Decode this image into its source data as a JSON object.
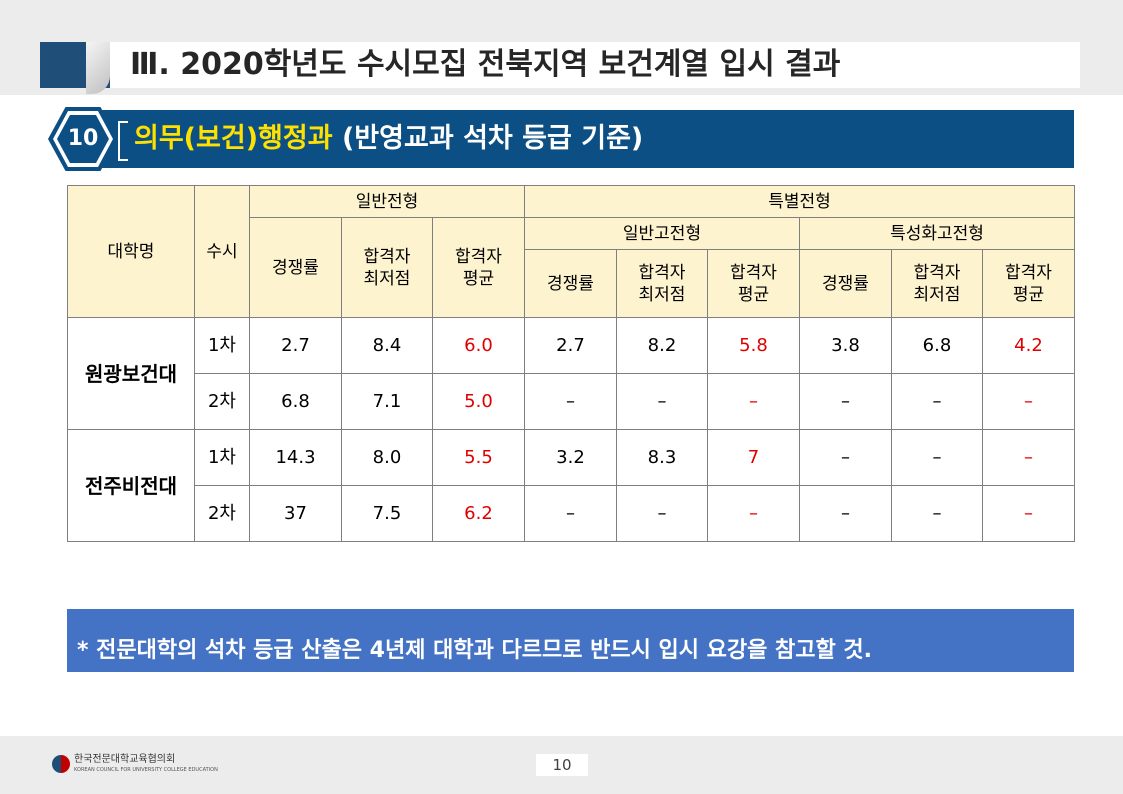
{
  "header": {
    "title": "Ⅲ. 2020학년도 수시모집 전북지역 보건계열 입시 결과"
  },
  "section": {
    "number": "10",
    "title": "의무(보건)행정과",
    "subtitle": "(반영교과  석차 등급 기준)"
  },
  "table": {
    "head": {
      "university": "대학명",
      "round": "수시",
      "general": "일반전형",
      "special": "특별전형",
      "special_general": "일반고전형",
      "special_specialized": "특성화고전형",
      "ratio": "경쟁률",
      "min_1": "합격자",
      "min_2": "최저점",
      "avg_1": "합격자",
      "avg_2": "평균"
    },
    "groups": [
      {
        "university": "원광보건대",
        "rows": [
          {
            "round": "1차",
            "cells": [
              "2.7",
              "8.4",
              "6.0",
              "2.7",
              "8.2",
              "5.8",
              "3.8",
              "6.8",
              "4.2"
            ]
          },
          {
            "round": "2차",
            "cells": [
              "6.8",
              "7.1",
              "5.0",
              "–",
              "–",
              "–",
              "–",
              "–",
              "–"
            ]
          }
        ]
      },
      {
        "university": "전주비전대",
        "rows": [
          {
            "round": "1차",
            "cells": [
              "14.3",
              "8.0",
              "5.5",
              "3.2",
              "8.3",
              "7",
              "–",
              "–",
              "–"
            ]
          },
          {
            "round": "2차",
            "cells": [
              "37",
              "7.5",
              "6.2",
              "–",
              "–",
              "–",
              "–",
              "–",
              "–"
            ]
          }
        ]
      }
    ]
  },
  "notice": "* 전문대학의 석차 등급 산출은 4년제 대학과 다르므로 반드시 입시 요강을 참고할 것.",
  "footer": {
    "org_name_ko": "한국전문대학교육협의회",
    "org_name_en": "KOREAN COUNCIL FOR UNIVERSITY COLLEGE EDUCATION",
    "page_number": "10",
    "logo_icon": "council-logo-icon"
  },
  "colors": {
    "header_navy": "#0b4f85",
    "title_yellow": "#ffe100",
    "table_header_bg": "#fdf3cf",
    "highlight_red": "#e00000",
    "notice_blue": "#4472c4"
  }
}
